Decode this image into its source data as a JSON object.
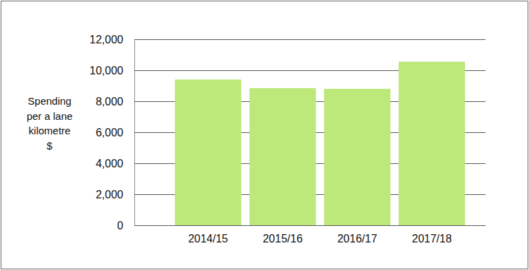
{
  "chart_data": {
    "type": "bar",
    "ylabel": [
      "Spending",
      "per a lane",
      "kilometre",
      "$"
    ],
    "categories": [
      "2014/15",
      "2015/16",
      "2016/17",
      "2017/18"
    ],
    "values": [
      9400,
      8850,
      8800,
      10550
    ],
    "color": "#bde87a",
    "ylim": [
      0,
      12000
    ],
    "yticks": [
      0,
      {
        "value": 2000,
        "label": "2,000"
      },
      {
        "value": 4000,
        "label": "4,000"
      },
      {
        "value": 6000,
        "label": "6,000"
      },
      {
        "value": 8000,
        "label": "8,000"
      },
      {
        "value": 10000,
        "label": "10,000"
      },
      {
        "value": 12000,
        "label": "12,000"
      }
    ],
    "grid": true
  }
}
